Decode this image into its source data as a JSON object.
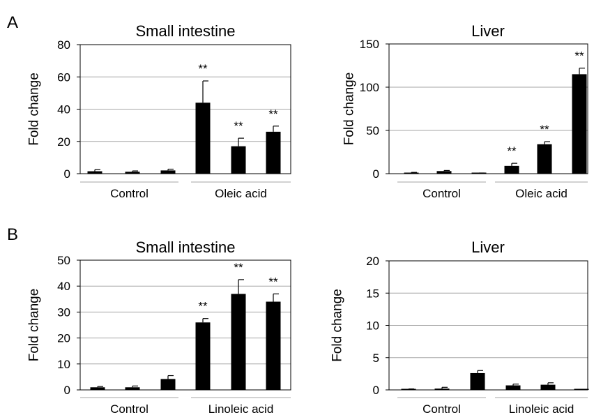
{
  "colors": {
    "bar": "#000000",
    "grid": "#a6a6a6",
    "axis": "#000000",
    "background": "#ffffff"
  },
  "chart_data": [
    {
      "panel": "A",
      "type": "bar",
      "title": "Small intestine",
      "ylabel": "Fold change",
      "ylim": [
        0,
        80
      ],
      "yticks": [
        0,
        20,
        40,
        60,
        80
      ],
      "grid": true,
      "groups": [
        {
          "label": "Control",
          "bars": [
            {
              "value": 1.5,
              "error": 1.0
            },
            {
              "value": 1.2,
              "error": 0.5
            },
            {
              "value": 2.0,
              "error": 0.8
            }
          ]
        },
        {
          "label": "Oleic acid",
          "bars": [
            {
              "value": 44,
              "error": 13.5,
              "annotation": "**"
            },
            {
              "value": 17,
              "error": 5,
              "annotation": "**"
            },
            {
              "value": 26,
              "error": 3.5,
              "annotation": "**"
            }
          ]
        }
      ]
    },
    {
      "panel": "",
      "type": "bar",
      "title": "Liver",
      "ylabel": "Fold change",
      "ylim": [
        0,
        150
      ],
      "yticks": [
        0,
        50,
        100,
        150
      ],
      "grid": true,
      "groups": [
        {
          "label": "Control",
          "bars": [
            {
              "value": 1,
              "error": 0.5
            },
            {
              "value": 3,
              "error": 0.7
            },
            {
              "value": 0.5,
              "error": 0.3
            }
          ]
        },
        {
          "label": "Oleic acid",
          "bars": [
            {
              "value": 9,
              "error": 3,
              "annotation": "**"
            },
            {
              "value": 34,
              "error": 3,
              "annotation": "**"
            },
            {
              "value": 115,
              "error": 7,
              "annotation": "**"
            }
          ]
        }
      ]
    },
    {
      "panel": "B",
      "type": "bar",
      "title": "Small intestine",
      "ylabel": "Fold change",
      "ylim": [
        0,
        50
      ],
      "yticks": [
        0,
        10,
        20,
        30,
        40,
        50
      ],
      "grid": true,
      "groups": [
        {
          "label": "Control",
          "bars": [
            {
              "value": 1.0,
              "error": 0.3
            },
            {
              "value": 1.0,
              "error": 0.5
            },
            {
              "value": 4.2,
              "error": 1.3
            }
          ]
        },
        {
          "label": "Linoleic acid",
          "bars": [
            {
              "value": 26,
              "error": 1.5,
              "annotation": "**"
            },
            {
              "value": 37,
              "error": 5.5,
              "annotation": "**"
            },
            {
              "value": 34,
              "error": 3,
              "annotation": "**"
            }
          ]
        }
      ]
    },
    {
      "panel": "",
      "type": "bar",
      "title": "Liver",
      "ylabel": "Fold change",
      "ylim": [
        0,
        20
      ],
      "yticks": [
        0,
        5,
        10,
        15,
        20
      ],
      "grid": true,
      "groups": [
        {
          "label": "Control",
          "bars": [
            {
              "value": 0.1,
              "error": 0.05
            },
            {
              "value": 0.2,
              "error": 0.2
            },
            {
              "value": 2.6,
              "error": 0.4
            }
          ]
        },
        {
          "label": "Linoleic acid",
          "bars": [
            {
              "value": 0.7,
              "error": 0.2
            },
            {
              "value": 0.8,
              "error": 0.3
            },
            {
              "value": 0.05,
              "error": 0.0
            }
          ]
        }
      ]
    }
  ]
}
